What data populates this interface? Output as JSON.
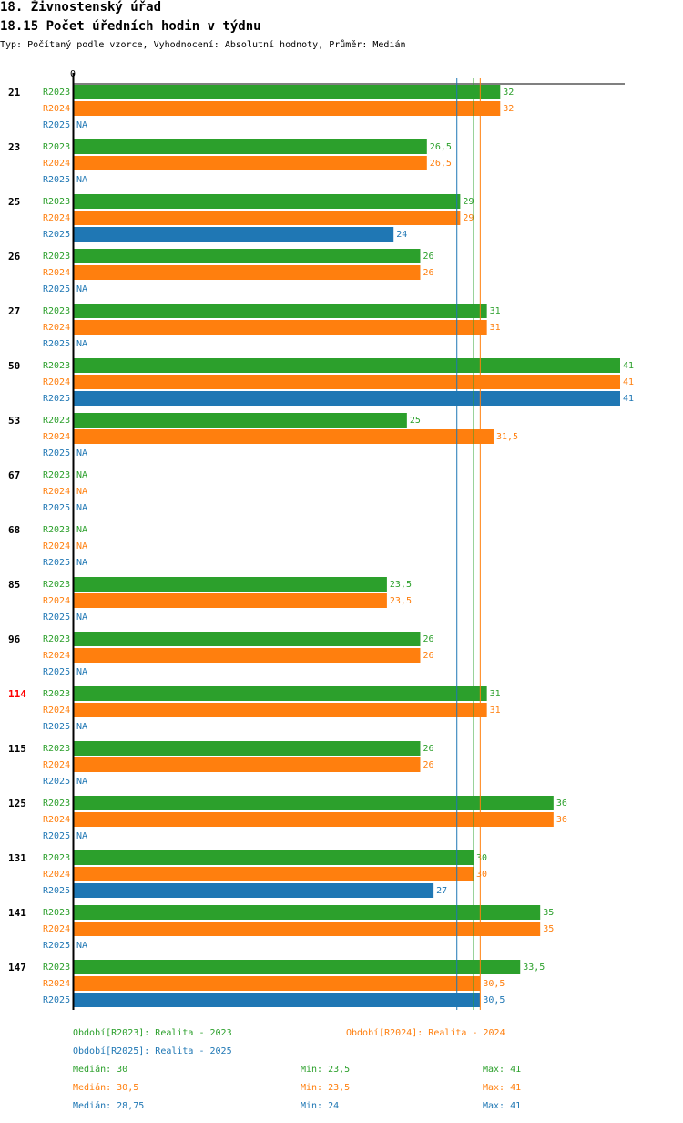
{
  "header": {
    "section_title": "18. Živnostenský úřad",
    "chart_title": "18.15 Počet úředních hodin v týdnu",
    "subtitle": "Typ: Počítaný podle vzorce, Vyhodnocení: Absolutní hodnoty, Průměr: Medián"
  },
  "colors": {
    "R2023": "#2ca02c",
    "R2024": "#ff7f0e",
    "R2025": "#1f77b4",
    "highlight": "#ff0000"
  },
  "chart_data": {
    "type": "bar",
    "orientation": "horizontal",
    "title": "18.15 Počet úředních hodin v týdnu",
    "axis_zero_label": "0",
    "xlim": [
      0,
      41
    ],
    "series_names": [
      "R2023",
      "R2024",
      "R2025"
    ],
    "na_label": "NA",
    "groups": [
      {
        "label": "21",
        "highlight": false,
        "values": [
          "32",
          "32",
          null
        ]
      },
      {
        "label": "23",
        "highlight": false,
        "values": [
          "26,5",
          "26,5",
          null
        ]
      },
      {
        "label": "25",
        "highlight": false,
        "values": [
          "29",
          "29",
          "24"
        ]
      },
      {
        "label": "26",
        "highlight": false,
        "values": [
          "26",
          "26",
          null
        ]
      },
      {
        "label": "27",
        "highlight": false,
        "values": [
          "31",
          "31",
          null
        ]
      },
      {
        "label": "50",
        "highlight": false,
        "values": [
          "41",
          "41",
          "41"
        ]
      },
      {
        "label": "53",
        "highlight": false,
        "values": [
          "25",
          "31,5",
          null
        ]
      },
      {
        "label": "67",
        "highlight": false,
        "values": [
          null,
          null,
          null
        ]
      },
      {
        "label": "68",
        "highlight": false,
        "values": [
          null,
          null,
          null
        ]
      },
      {
        "label": "85",
        "highlight": false,
        "values": [
          "23,5",
          "23,5",
          null
        ]
      },
      {
        "label": "96",
        "highlight": false,
        "values": [
          "26",
          "26",
          null
        ]
      },
      {
        "label": "114",
        "highlight": true,
        "values": [
          "31",
          "31",
          null
        ]
      },
      {
        "label": "115",
        "highlight": false,
        "values": [
          "26",
          "26",
          null
        ]
      },
      {
        "label": "125",
        "highlight": false,
        "values": [
          "36",
          "36",
          null
        ]
      },
      {
        "label": "131",
        "highlight": false,
        "values": [
          "30",
          "30",
          "27"
        ]
      },
      {
        "label": "141",
        "highlight": false,
        "values": [
          "35",
          "35",
          null
        ]
      },
      {
        "label": "147",
        "highlight": false,
        "values": [
          "33,5",
          "30,5",
          "30,5"
        ]
      }
    ],
    "median_lines": [
      {
        "series": "R2023",
        "value": 30
      },
      {
        "series": "R2024",
        "value": 30.5
      },
      {
        "series": "R2025",
        "value": 28.75
      }
    ]
  },
  "legend": {
    "r2023": "Období[R2023]: Realita - 2023",
    "r2024": "Období[R2024]: Realita - 2024",
    "r2025": "Období[R2025]: Realita - 2025"
  },
  "stats": [
    {
      "series": "R2023",
      "median": "Medián: 30",
      "min": "Min: 23,5",
      "max": "Max: 41"
    },
    {
      "series": "R2024",
      "median": "Medián: 30,5",
      "min": "Min: 23,5",
      "max": "Max: 41"
    },
    {
      "series": "R2025",
      "median": "Medián: 28,75",
      "min": "Min: 24",
      "max": "Max: 41"
    }
  ]
}
